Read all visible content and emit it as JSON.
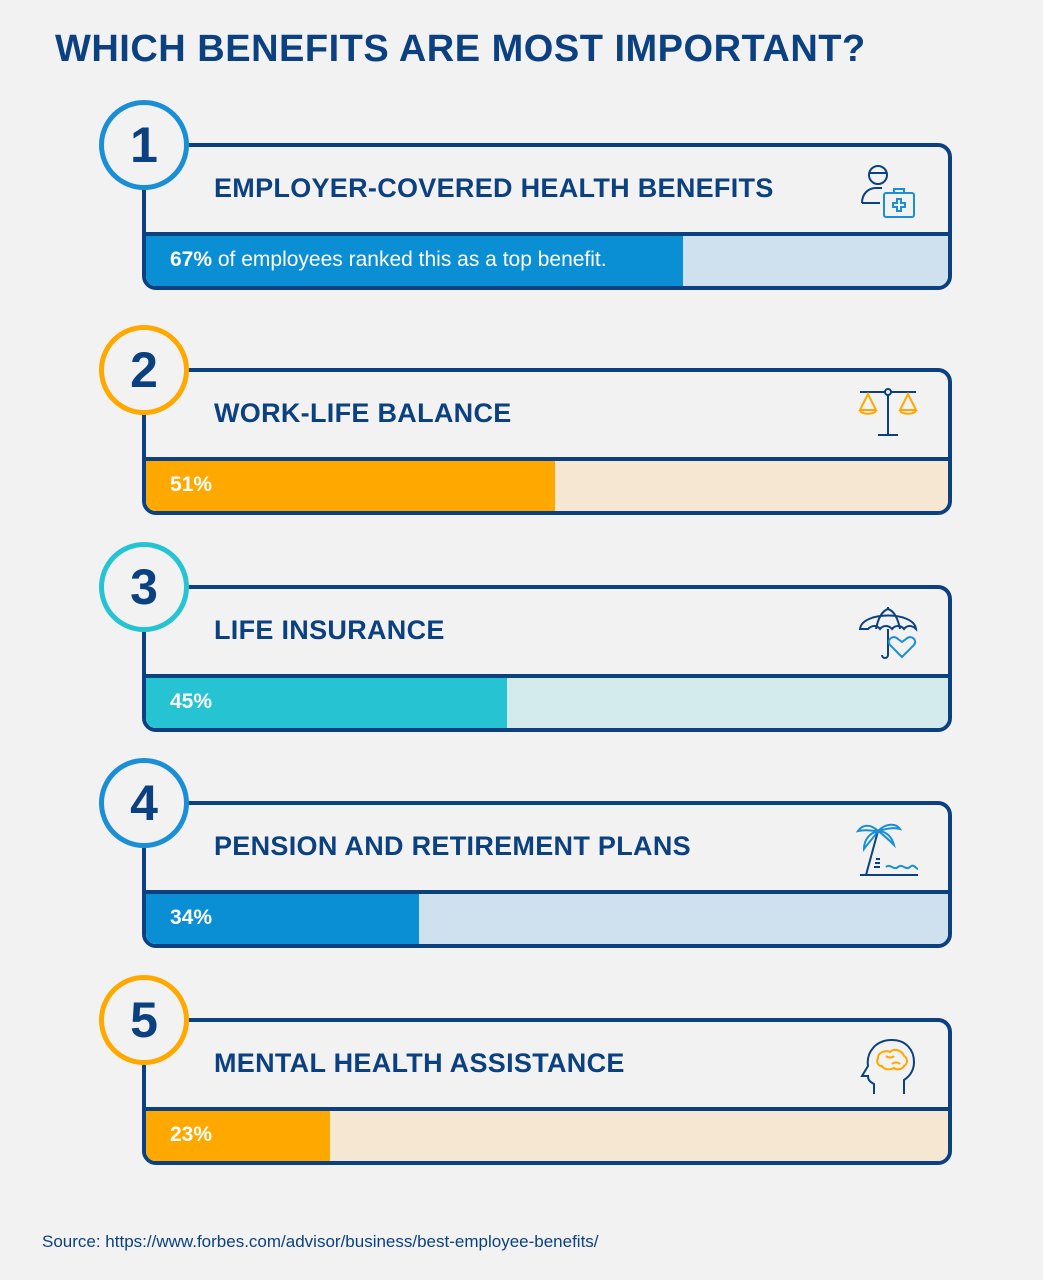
{
  "title": "WHICH BENEFITS ARE MOST IMPORTANT?",
  "chart_data": {
    "type": "bar",
    "title": "WHICH BENEFITS ARE MOST IMPORTANT?",
    "categories": [
      "EMPLOYER-COVERED HEALTH BENEFITS",
      "WORK-LIFE BALANCE",
      "LIFE INSURANCE",
      "PENSION AND RETIREMENT PLANS",
      "MENTAL HEALTH ASSISTANCE"
    ],
    "values": [
      67,
      51,
      45,
      34,
      23
    ],
    "ylim": [
      0,
      100
    ],
    "unit": "%"
  },
  "items": [
    {
      "rank": "1",
      "label": "EMPLOYER-COVERED HEALTH BENEFITS",
      "pct": "67%",
      "suffix": " of employees ranked this as a top benefit.",
      "value": 67,
      "icon": "health-worker-medkit-icon",
      "ring": "#1a8fd6",
      "fill": "#0a8fd4",
      "track": "#cfe1ee"
    },
    {
      "rank": "2",
      "label": "WORK-LIFE BALANCE",
      "pct": "51%",
      "suffix": "",
      "value": 51,
      "icon": "balance-scale-icon",
      "ring": "#ffa800",
      "fill": "#ffa800",
      "track": "#f5e7d2"
    },
    {
      "rank": "3",
      "label": "LIFE INSURANCE",
      "pct": "45%",
      "suffix": "",
      "value": 45,
      "icon": "umbrella-heart-icon",
      "ring": "#26c4d3",
      "fill": "#26c4d3",
      "track": "#d4ebee"
    },
    {
      "rank": "4",
      "label": "PENSION AND RETIREMENT PLANS",
      "pct": "34%",
      "suffix": "",
      "value": 34,
      "icon": "palm-tree-beach-icon",
      "ring": "#1a8fd6",
      "fill": "#0a8fd4",
      "track": "#cfe1ee"
    },
    {
      "rank": "5",
      "label": "MENTAL HEALTH ASSISTANCE",
      "pct": "23%",
      "suffix": "",
      "value": 23,
      "icon": "head-brain-icon",
      "ring": "#ffa800",
      "fill": "#ffa800",
      "track": "#f5e7d2"
    }
  ],
  "source": "Source: https://www.forbes.com/advisor/business/best-employee-benefits/"
}
